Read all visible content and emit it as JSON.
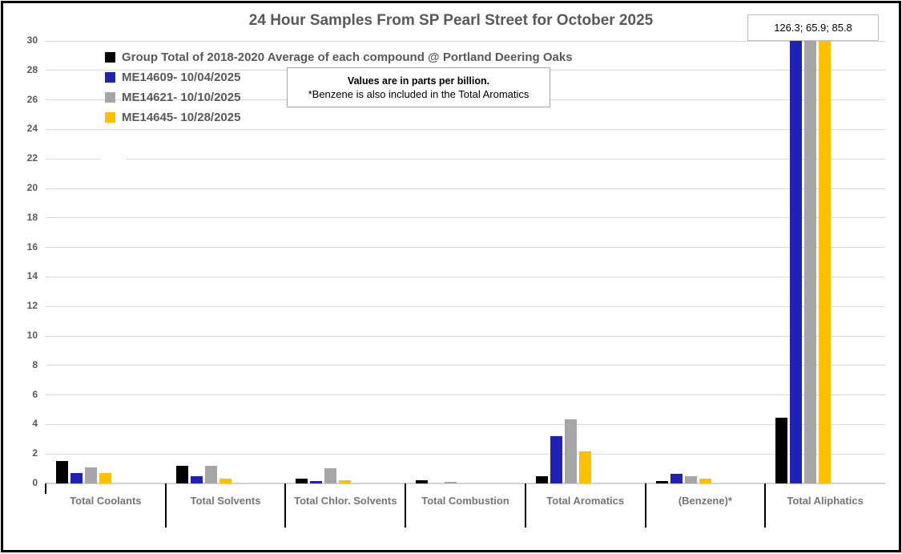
{
  "chart_data": {
    "type": "bar",
    "title": "24 Hour Samples From SP Pearl Street for October 2025",
    "xlabel": "",
    "ylabel": "",
    "ylim": [
      0,
      30
    ],
    "ytick_step": 2,
    "grid": true,
    "legend_position": "top-left",
    "annotation": "126.3; 65.9; 85.8",
    "annotation_meaning": "Total Aliphatics values exceeding the 0-30 axis for ME14609, ME14621, ME14645",
    "notes": [
      "Values are in parts per billion.",
      "*Benzene is also included in the Total Aromatics"
    ],
    "categories": [
      "Total Coolants",
      "Total Solvents",
      "Total Chlor. Solvents",
      "Total Combustion",
      "Total Aromatics",
      "(Benzene)*",
      "Total Aliphatics"
    ],
    "series": [
      {
        "name": "Group Total of 2018-2020 Average of each compound @ Portland Deering Oaks",
        "color": "#000000",
        "values": [
          1.5,
          1.2,
          0.3,
          0.2,
          0.5,
          0.15,
          4.45
        ]
      },
      {
        "name": "ME14609- 10/04/2025",
        "color": "#1F22B4",
        "values": [
          0.7,
          0.5,
          0.15,
          0,
          3.2,
          0.65,
          126.3
        ]
      },
      {
        "name": "ME14621- 10/10/2025",
        "color": "#A6A6A6",
        "values": [
          1.1,
          1.2,
          1.05,
          0.1,
          4.35,
          0.5,
          65.9
        ]
      },
      {
        "name": "ME14645- 10/28/2025",
        "color": "#FFC000",
        "values": [
          0.7,
          0.3,
          0.2,
          0,
          2.2,
          0.35,
          85.8
        ]
      }
    ],
    "colors": {
      "gridline": "#D9D9D9",
      "axis_text": "#595959",
      "category_text": "#757575",
      "title_text": "#595959",
      "separator": "#000000"
    }
  }
}
